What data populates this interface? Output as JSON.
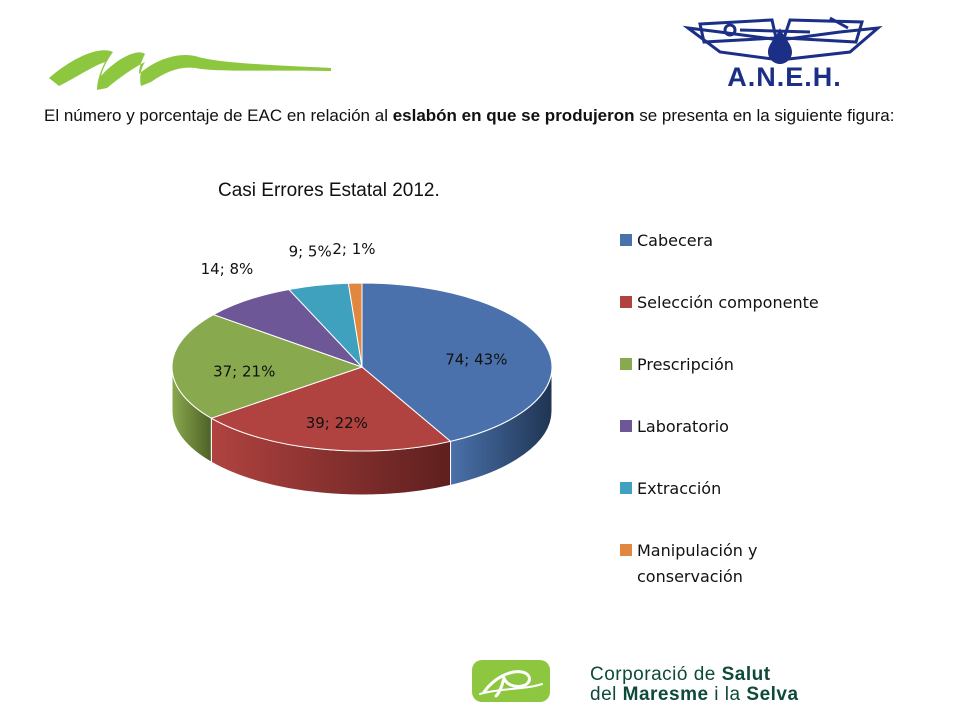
{
  "header": {
    "aneh_text": "A.N.E.H.",
    "intro_part1": "El número y porcentaje de EAC en relación al ",
    "intro_bold": "eslabón en que se produjeron",
    "intro_part2": " se presenta en la siguiente figura:"
  },
  "chart_data": {
    "type": "pie",
    "title": "Casi Errores Estatal 2012.",
    "categories": [
      "Cabecera",
      "Selección componente",
      "Prescripción",
      "Laboratorio",
      "Extracción",
      "Manipulación y conservación"
    ],
    "values": [
      74,
      39,
      37,
      14,
      9,
      2
    ],
    "percent_labels": [
      "74; 43%",
      "39; 22%",
      "37; 21%",
      "14; 8%",
      "9; 5%",
      "2; 1%"
    ],
    "colors": [
      "#4a71ab",
      "#b04340",
      "#89a94e",
      "#6e5796",
      "#3fa1bd",
      "#e1873f"
    ],
    "side_colors": [
      "#1f3552",
      "#5e1f1e",
      "#4e6128",
      "#3b2c52",
      "#1e5d6d",
      "#8a4c1b"
    ],
    "legend_position": "right",
    "3d": true
  },
  "footer": {
    "line1_regular": "Corporació de ",
    "line1_bold": "Salut",
    "line2_regular": "del ",
    "line2_bold": "Maresme",
    "line2_regular2": " i la ",
    "line2_bold2": "Selva"
  }
}
